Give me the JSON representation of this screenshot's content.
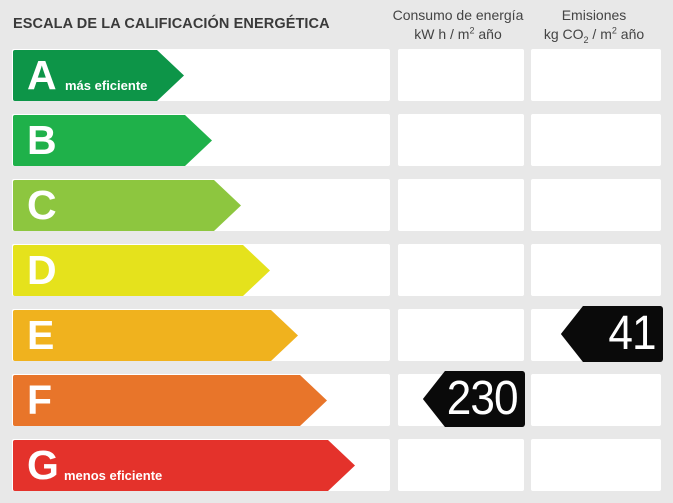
{
  "header": {
    "title": "ESCALA DE LA CALIFICACIÓN ENERGÉTICA",
    "consumption_line1": "Consumo de energía",
    "consumption_unit_a": "kW h  / m",
    "consumption_unit_sup": "2",
    "consumption_unit_b": " año",
    "emissions_line1": "Emisiones",
    "emissions_unit_a": "kg CO",
    "emissions_unit_sub": "2",
    "emissions_unit_b": "  / m",
    "emissions_unit_sup": "2",
    "emissions_unit_c": " año"
  },
  "rows": [
    {
      "letter": "A",
      "sublabel": "más eficiente",
      "color": "#0d9548"
    },
    {
      "letter": "B",
      "sublabel": "",
      "color": "#1fb14a"
    },
    {
      "letter": "C",
      "sublabel": "",
      "color": "#8dc63f"
    },
    {
      "letter": "D",
      "sublabel": "",
      "color": "#e5e21c"
    },
    {
      "letter": "E",
      "sublabel": "",
      "color": "#f0b21e"
    },
    {
      "letter": "F",
      "sublabel": "",
      "color": "#e8752a"
    },
    {
      "letter": "G",
      "sublabel": "menos eficiente",
      "color": "#e4322b"
    }
  ],
  "consumption": {
    "value": "230",
    "row_letter": "F"
  },
  "emissions": {
    "value": "41",
    "row_letter": "E"
  }
}
